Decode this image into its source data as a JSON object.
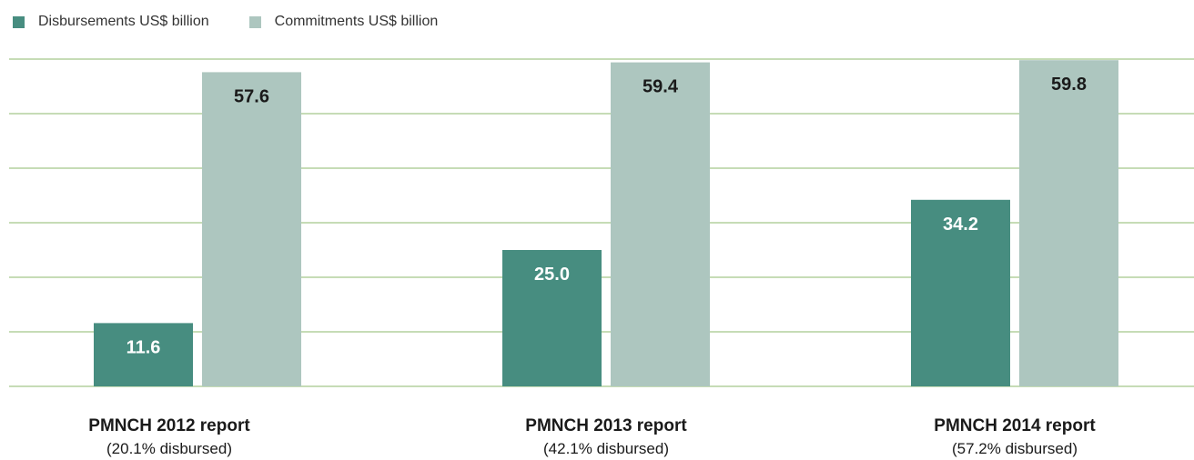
{
  "colors": {
    "disbursements": "#478d80",
    "commitments": "#adc6bf",
    "grid": "#c6dcb6"
  },
  "legend": [
    {
      "label": "Disbursements US$ billion",
      "color": "#478d80"
    },
    {
      "label": "Commitments US$ billion",
      "color": "#adc6bf"
    }
  ],
  "chart_data": {
    "type": "bar",
    "categories": [
      "PMNCH 2012 report",
      "PMNCH 2013 report",
      "PMNCH 2014 report"
    ],
    "category_notes": [
      "(20.1% disbursed)",
      "(42.1% disbursed)",
      "(57.2% disbursed)"
    ],
    "series": [
      {
        "name": "Disbursements US$ billion",
        "values": [
          11.6,
          25.0,
          34.2
        ],
        "labels": [
          "11.6",
          "25.0",
          "34.2"
        ]
      },
      {
        "name": "Commitments US$ billion",
        "values": [
          57.6,
          59.4,
          59.8
        ],
        "labels": [
          "57.6",
          "59.4",
          "59.8"
        ]
      }
    ],
    "ylim": [
      0,
      60
    ],
    "grid": true,
    "legend_position": "top-left"
  }
}
